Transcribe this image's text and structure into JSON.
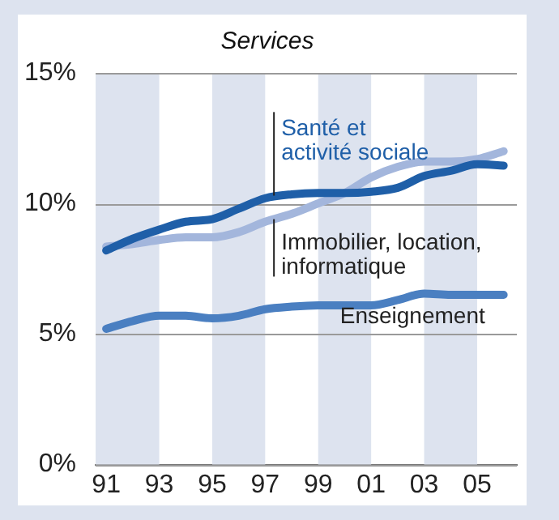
{
  "chart_data": {
    "type": "line",
    "title": "Services",
    "x": [
      1991,
      1992,
      1993,
      1994,
      1995,
      1996,
      1997,
      1998,
      1999,
      2000,
      2001,
      2002,
      2003,
      2004,
      2005,
      2006
    ],
    "series": [
      {
        "name": "Santé et activité sociale",
        "color": "#1f5fa8",
        "values": [
          8.2,
          8.65,
          9.0,
          9.3,
          9.4,
          9.8,
          10.2,
          10.35,
          10.4,
          10.4,
          10.45,
          10.6,
          11.05,
          11.25,
          11.5,
          11.45
        ]
      },
      {
        "name": "Immobilier, location, informatique",
        "color": "#a3b6dc",
        "values": [
          8.35,
          8.45,
          8.6,
          8.7,
          8.7,
          8.9,
          9.3,
          9.6,
          10.0,
          10.4,
          11.0,
          11.4,
          11.6,
          11.6,
          11.7,
          12.0
        ]
      },
      {
        "name": "Enseignement",
        "color": "#4a7fc1",
        "values": [
          5.2,
          5.5,
          5.7,
          5.7,
          5.6,
          5.7,
          5.95,
          6.05,
          6.1,
          6.1,
          6.1,
          6.3,
          6.55,
          6.5,
          6.5,
          6.5
        ]
      }
    ],
    "xlim": [
      1990.6,
      2006.5
    ],
    "xticks": [
      {
        "value": 1991,
        "label": "91"
      },
      {
        "value": 1993,
        "label": "93"
      },
      {
        "value": 1995,
        "label": "95"
      },
      {
        "value": 1997,
        "label": "97"
      },
      {
        "value": 1999,
        "label": "99"
      },
      {
        "value": 2001,
        "label": "01"
      },
      {
        "value": 2003,
        "label": "03"
      },
      {
        "value": 2005,
        "label": "05"
      }
    ],
    "ylim": [
      0,
      15
    ],
    "yticks": [
      {
        "value": 0,
        "label": "0%"
      },
      {
        "value": 5,
        "label": "5%"
      },
      {
        "value": 10,
        "label": "10%"
      },
      {
        "value": 15,
        "label": "15%"
      }
    ],
    "bands": [
      {
        "axis": "x",
        "from": 1990.6,
        "to": 1993,
        "color": "#dde3ef"
      },
      {
        "axis": "x",
        "from": 1995,
        "to": 1997,
        "color": "#dde3ef"
      },
      {
        "axis": "x",
        "from": 1999,
        "to": 2001,
        "color": "#dde3ef"
      },
      {
        "axis": "x",
        "from": 2003,
        "to": 2005,
        "color": "#dde3ef"
      }
    ],
    "grid": "y",
    "legend": false,
    "marker": "none",
    "line_style": "solid"
  }
}
